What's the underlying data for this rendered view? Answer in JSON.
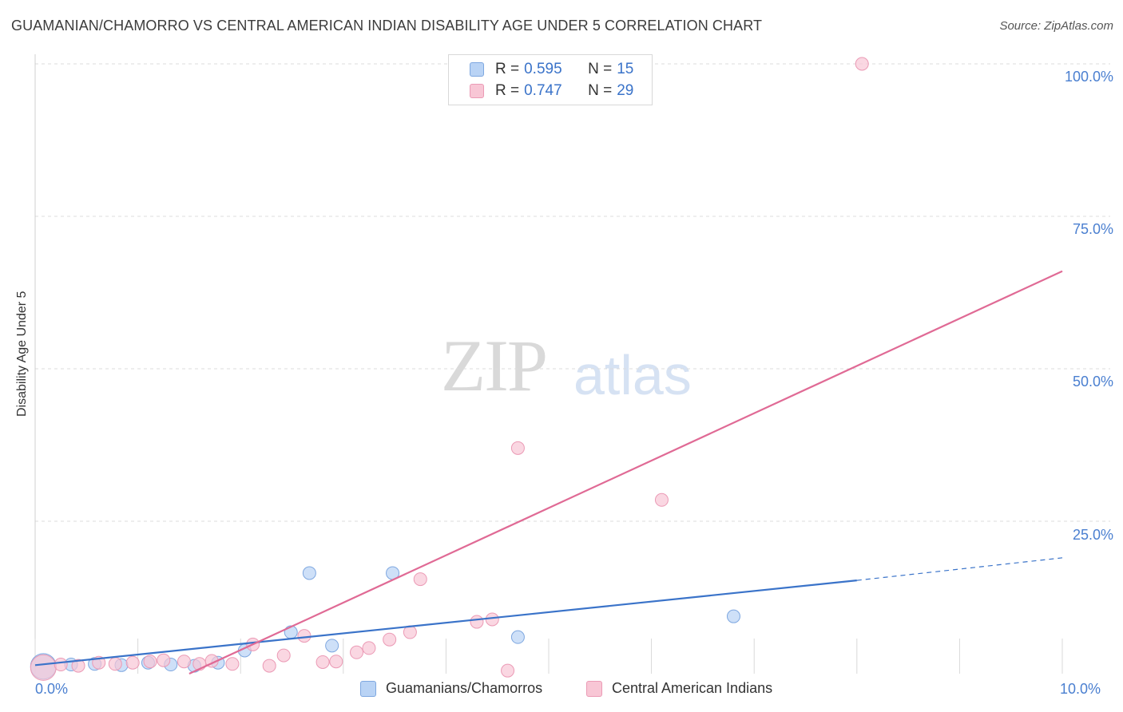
{
  "title": "GUAMANIAN/CHAMORRO VS CENTRAL AMERICAN INDIAN DISABILITY AGE UNDER 5 CORRELATION CHART",
  "source": "Source: ZipAtlas.com",
  "watermark": {
    "zip": "ZIP",
    "atlas": "atlas"
  },
  "colors": {
    "blue": "#3a73c9",
    "blue_fill": "#b9d3f5",
    "pink": "#e06a95",
    "pink_fill": "#f8c6d5",
    "grid": "#dcdcdc"
  },
  "legend": {
    "r_label": "R =",
    "n_label": "N =",
    "rows": [
      {
        "r": "0.595",
        "n": "15"
      },
      {
        "r": "0.747",
        "n": "29"
      }
    ]
  },
  "bottom_legend": [
    "Guamanians/Chamorros",
    "Central American Indians"
  ],
  "chart_data": {
    "type": "scatter",
    "title": "GUAMANIAN/CHAMORRO VS CENTRAL AMERICAN INDIAN DISABILITY AGE UNDER 5 CORRELATION CHART",
    "xlabel": "",
    "ylabel": "Disability Age Under 5",
    "xlim": [
      0,
      10
    ],
    "ylim": [
      0,
      100
    ],
    "x_tick_labels": [
      "0.0%",
      "10.0%"
    ],
    "y_tick_labels": [
      "100.0%",
      "75.0%",
      "50.0%",
      "25.0%"
    ],
    "y_ticks": [
      100,
      75,
      50,
      25
    ],
    "grid": true,
    "series": [
      {
        "name": "Guamanians/Chamorros",
        "color": "#3a73c9",
        "points": [
          {
            "x": 0.08,
            "y": 1.2,
            "big": true
          },
          {
            "x": 0.35,
            "y": 1.5
          },
          {
            "x": 0.58,
            "y": 1.6
          },
          {
            "x": 0.84,
            "y": 1.4
          },
          {
            "x": 1.1,
            "y": 1.8
          },
          {
            "x": 1.32,
            "y": 1.5
          },
          {
            "x": 1.55,
            "y": 1.3
          },
          {
            "x": 1.78,
            "y": 1.8
          },
          {
            "x": 2.04,
            "y": 3.8
          },
          {
            "x": 2.49,
            "y": 6.8
          },
          {
            "x": 2.67,
            "y": 16.5
          },
          {
            "x": 2.89,
            "y": 4.6
          },
          {
            "x": 3.48,
            "y": 16.5
          },
          {
            "x": 4.7,
            "y": 6.0
          },
          {
            "x": 6.8,
            "y": 9.4
          }
        ],
        "trend": {
          "x": [
            0.0,
            8.0
          ],
          "y": [
            1.4,
            15.3
          ]
        },
        "trend_dashed": {
          "x": [
            8.0,
            10.0
          ],
          "y": [
            15.3,
            19.0
          ]
        }
      },
      {
        "name": "Central American Indians",
        "color": "#e06a95",
        "points": [
          {
            "x": 0.08,
            "y": 1.0,
            "big": true
          },
          {
            "x": 0.25,
            "y": 1.5
          },
          {
            "x": 0.42,
            "y": 1.3
          },
          {
            "x": 0.62,
            "y": 1.8
          },
          {
            "x": 0.78,
            "y": 1.6
          },
          {
            "x": 0.95,
            "y": 1.8
          },
          {
            "x": 1.12,
            "y": 2.0
          },
          {
            "x": 1.25,
            "y": 2.2
          },
          {
            "x": 1.45,
            "y": 2.0
          },
          {
            "x": 1.6,
            "y": 1.6
          },
          {
            "x": 1.72,
            "y": 2.1
          },
          {
            "x": 1.92,
            "y": 1.6
          },
          {
            "x": 2.12,
            "y": 4.8
          },
          {
            "x": 2.28,
            "y": 1.3
          },
          {
            "x": 2.42,
            "y": 3.0
          },
          {
            "x": 2.62,
            "y": 6.2
          },
          {
            "x": 2.8,
            "y": 1.9
          },
          {
            "x": 2.93,
            "y": 2.0
          },
          {
            "x": 3.13,
            "y": 3.5
          },
          {
            "x": 3.25,
            "y": 4.2
          },
          {
            "x": 3.45,
            "y": 5.6
          },
          {
            "x": 3.65,
            "y": 6.8
          },
          {
            "x": 3.75,
            "y": 15.5
          },
          {
            "x": 4.3,
            "y": 8.5
          },
          {
            "x": 4.45,
            "y": 8.9
          },
          {
            "x": 4.6,
            "y": 0.5
          },
          {
            "x": 4.7,
            "y": 37.0
          },
          {
            "x": 6.1,
            "y": 28.5
          },
          {
            "x": 8.05,
            "y": 100.0
          }
        ],
        "trend": {
          "x": [
            1.5,
            10.0
          ],
          "y": [
            0.0,
            66.0
          ]
        }
      }
    ]
  }
}
